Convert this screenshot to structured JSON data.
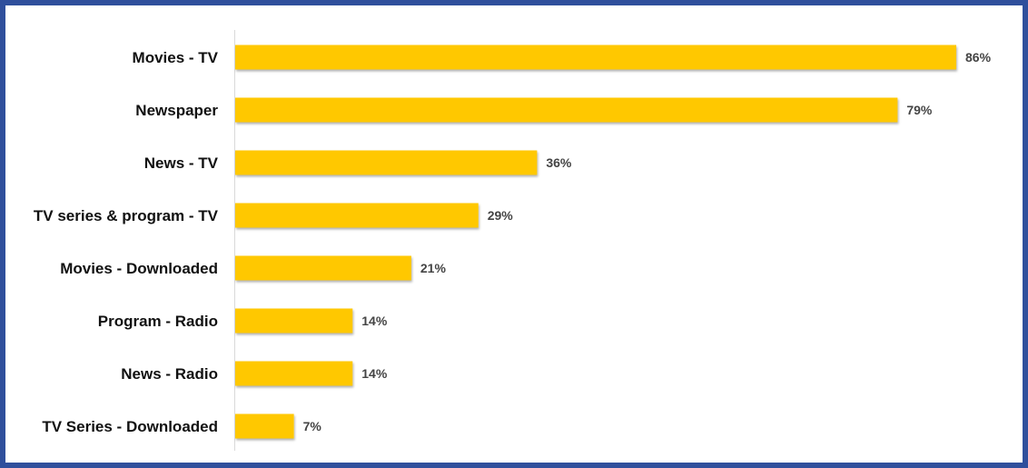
{
  "chart_data": {
    "type": "bar",
    "orientation": "horizontal",
    "categories": [
      "Movies - TV",
      "Newspaper",
      "News - TV",
      "TV series & program - TV",
      "Movies - Downloaded",
      "Program - Radio",
      "News - Radio",
      "TV Series - Downloaded"
    ],
    "values": [
      86,
      79,
      36,
      29,
      21,
      14,
      14,
      7
    ],
    "data_labels": [
      "86%",
      "79%",
      "36%",
      "29%",
      "21%",
      "14%",
      "14%",
      "7%"
    ],
    "unit": "%",
    "xlim": [
      0,
      86
    ],
    "grid": false,
    "legend": "none",
    "colors": {
      "bar": "#ffc800",
      "frame": "#2f4f9c",
      "axis": "#d9d9d9"
    }
  }
}
